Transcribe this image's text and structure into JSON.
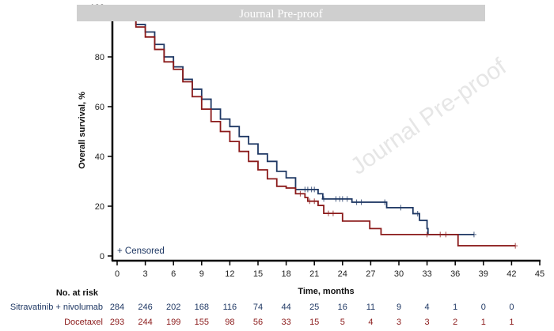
{
  "banner": {
    "text": "Journal Pre-proof",
    "watermark": "Journal Pre-proof"
  },
  "chart_data": {
    "type": "line",
    "subtype": "kaplan-meier",
    "xlabel": "Time, months",
    "ylabel": "Overall survival, %",
    "xlim": [
      0,
      45
    ],
    "ylim": [
      0,
      100
    ],
    "xticks": [
      0,
      3,
      6,
      9,
      12,
      15,
      18,
      21,
      24,
      27,
      30,
      33,
      36,
      39,
      42,
      45
    ],
    "yticks": [
      0,
      20,
      40,
      60,
      80,
      100
    ],
    "grid": false,
    "legend": {
      "censor_label": "+ Censored",
      "placement": "bottom-left"
    },
    "series": [
      {
        "name": "Sitravatinib + nivolumab",
        "color": "#1f3864",
        "steps": [
          [
            0,
            100
          ],
          [
            1,
            97
          ],
          [
            2,
            93
          ],
          [
            3,
            90
          ],
          [
            4,
            85
          ],
          [
            5,
            80
          ],
          [
            6,
            76
          ],
          [
            7,
            71
          ],
          [
            8,
            67
          ],
          [
            9,
            63
          ],
          [
            10,
            59
          ],
          [
            11,
            55
          ],
          [
            12,
            52
          ],
          [
            13,
            48
          ],
          [
            14,
            45
          ],
          [
            15,
            41
          ],
          [
            16,
            38
          ],
          [
            17,
            34
          ],
          [
            18,
            31.4
          ],
          [
            19,
            26.7
          ],
          [
            21.4,
            25
          ],
          [
            21.9,
            22.9
          ],
          [
            25,
            21.6
          ],
          [
            28.7,
            19.4
          ],
          [
            31.5,
            17
          ],
          [
            32.2,
            14.3
          ],
          [
            33,
            11
          ],
          [
            33.1,
            8.6
          ]
        ],
        "end": 38,
        "censored": [
          [
            20,
            26.7
          ],
          [
            20.3,
            26.7
          ],
          [
            20.7,
            26.7
          ],
          [
            21,
            26.7
          ],
          [
            22,
            22.9
          ],
          [
            23.3,
            22.9
          ],
          [
            23.7,
            22.9
          ],
          [
            24,
            22.9
          ],
          [
            24.5,
            22.9
          ],
          [
            25.5,
            21.6
          ],
          [
            26,
            21.6
          ],
          [
            28.5,
            21.6
          ],
          [
            30.2,
            19.4
          ],
          [
            32,
            17
          ],
          [
            38,
            8.6
          ]
        ]
      },
      {
        "name": "Docetaxel",
        "color": "#8b1a1a",
        "steps": [
          [
            0,
            100
          ],
          [
            1,
            96
          ],
          [
            2,
            92
          ],
          [
            3,
            88
          ],
          [
            4,
            83
          ],
          [
            5,
            78
          ],
          [
            6,
            75
          ],
          [
            7,
            70
          ],
          [
            8,
            64
          ],
          [
            9,
            59
          ],
          [
            10,
            54
          ],
          [
            11,
            50
          ],
          [
            12,
            46
          ],
          [
            13,
            42
          ],
          [
            14,
            38
          ],
          [
            15,
            34.6
          ],
          [
            16,
            31
          ],
          [
            17,
            28
          ],
          [
            18,
            27.3
          ],
          [
            19,
            25
          ],
          [
            20,
            23.5
          ],
          [
            20.3,
            22
          ],
          [
            21.4,
            20.3
          ],
          [
            22,
            17.1
          ],
          [
            24,
            14
          ],
          [
            26.9,
            11
          ],
          [
            28.1,
            8.6
          ],
          [
            36.3,
            4.1
          ]
        ],
        "end": 42.4,
        "censored": [
          [
            19.5,
            25
          ],
          [
            20.5,
            22
          ],
          [
            21,
            22
          ],
          [
            22.5,
            17.1
          ],
          [
            23,
            17.1
          ],
          [
            33,
            8.6
          ],
          [
            34.4,
            8.6
          ],
          [
            35,
            8.6
          ],
          [
            42.4,
            4.1
          ]
        ]
      }
    ],
    "risk_table": {
      "title": "No. at risk",
      "times": [
        0,
        3,
        6,
        9,
        12,
        15,
        18,
        21,
        24,
        27,
        30,
        33,
        36,
        39,
        42
      ],
      "rows": [
        {
          "label": "Sitravatinib + nivolumab",
          "color": "#1f3864",
          "values": [
            284,
            246,
            202,
            168,
            116,
            74,
            44,
            25,
            16,
            11,
            9,
            4,
            1,
            0,
            0
          ]
        },
        {
          "label": "Docetaxel",
          "color": "#8b1a1a",
          "values": [
            293,
            244,
            199,
            155,
            98,
            56,
            33,
            15,
            5,
            4,
            3,
            3,
            2,
            1,
            1
          ]
        }
      ]
    }
  }
}
